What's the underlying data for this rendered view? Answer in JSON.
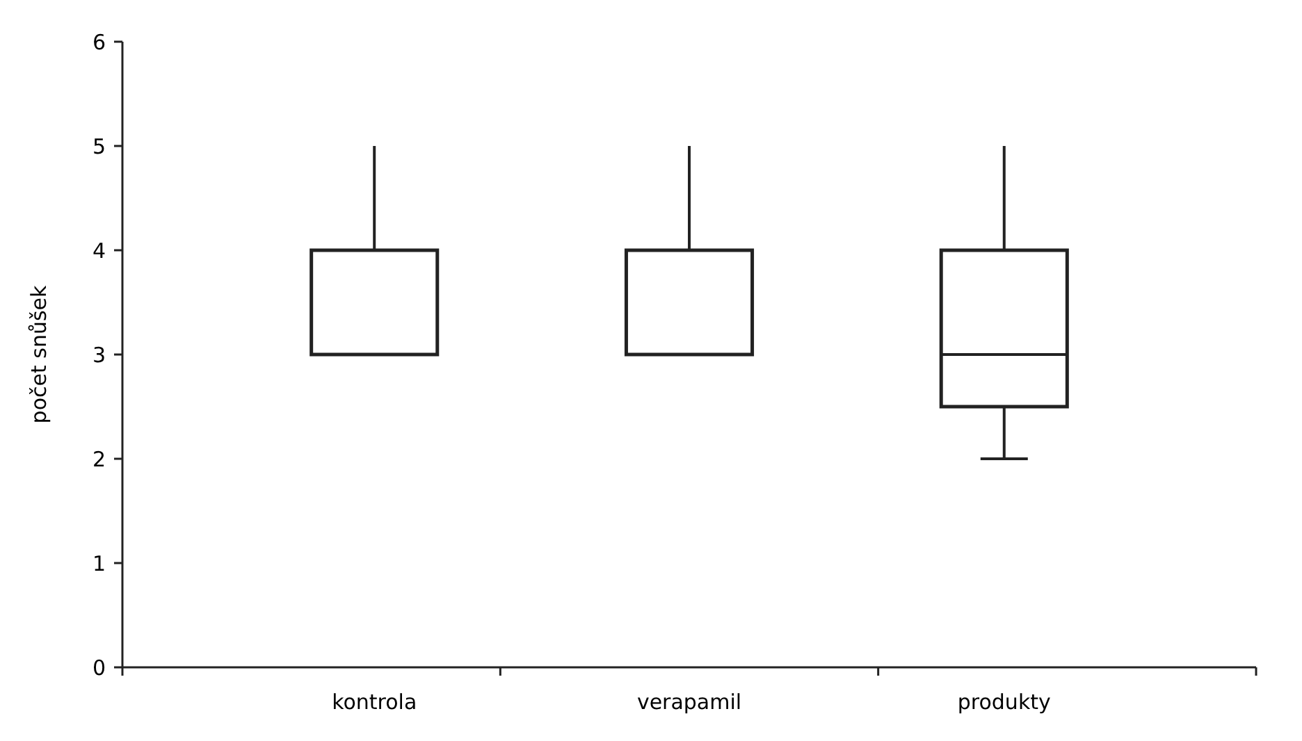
{
  "chart_data": {
    "type": "box",
    "ylabel": "počet snůšek",
    "categories": [
      "kontrola",
      "verapamil",
      "produkty"
    ],
    "boxes": [
      {
        "low": 3,
        "q1": 3,
        "median": 3,
        "q3": 4,
        "high": 5
      },
      {
        "low": 3,
        "q1": 3,
        "median": 3,
        "q3": 4,
        "high": 5
      },
      {
        "low": 2,
        "q1": 2.5,
        "median": 3,
        "q3": 4,
        "high": 5
      }
    ],
    "ylim": [
      0,
      6
    ],
    "yticks": [
      0,
      1,
      2,
      3,
      4,
      5,
      6
    ],
    "grid": false
  }
}
